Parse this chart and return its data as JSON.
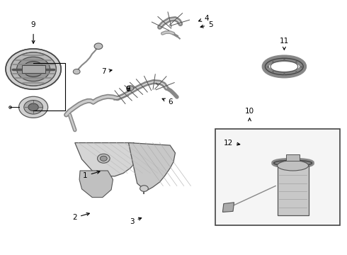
{
  "background_color": "#ffffff",
  "fig_width": 4.9,
  "fig_height": 3.6,
  "dpi": 100,
  "label_data": [
    [
      1,
      0.245,
      0.31,
      0.295,
      0.33
    ],
    [
      2,
      0.215,
      0.145,
      0.265,
      0.165
    ],
    [
      3,
      0.38,
      0.13,
      0.415,
      0.148
    ],
    [
      4,
      0.595,
      0.93,
      0.565,
      0.915
    ],
    [
      5,
      0.607,
      0.905,
      0.57,
      0.893
    ],
    [
      6,
      0.49,
      0.6,
      0.46,
      0.618
    ],
    [
      7,
      0.298,
      0.72,
      0.33,
      0.728
    ],
    [
      8,
      0.368,
      0.65,
      0.38,
      0.66
    ],
    [
      9,
      0.095,
      0.89,
      0.095,
      0.82
    ],
    [
      10,
      0.72,
      0.55,
      0.72,
      0.54
    ],
    [
      11,
      0.82,
      0.84,
      0.82,
      0.795
    ],
    [
      12,
      0.658,
      0.44,
      0.7,
      0.432
    ]
  ]
}
